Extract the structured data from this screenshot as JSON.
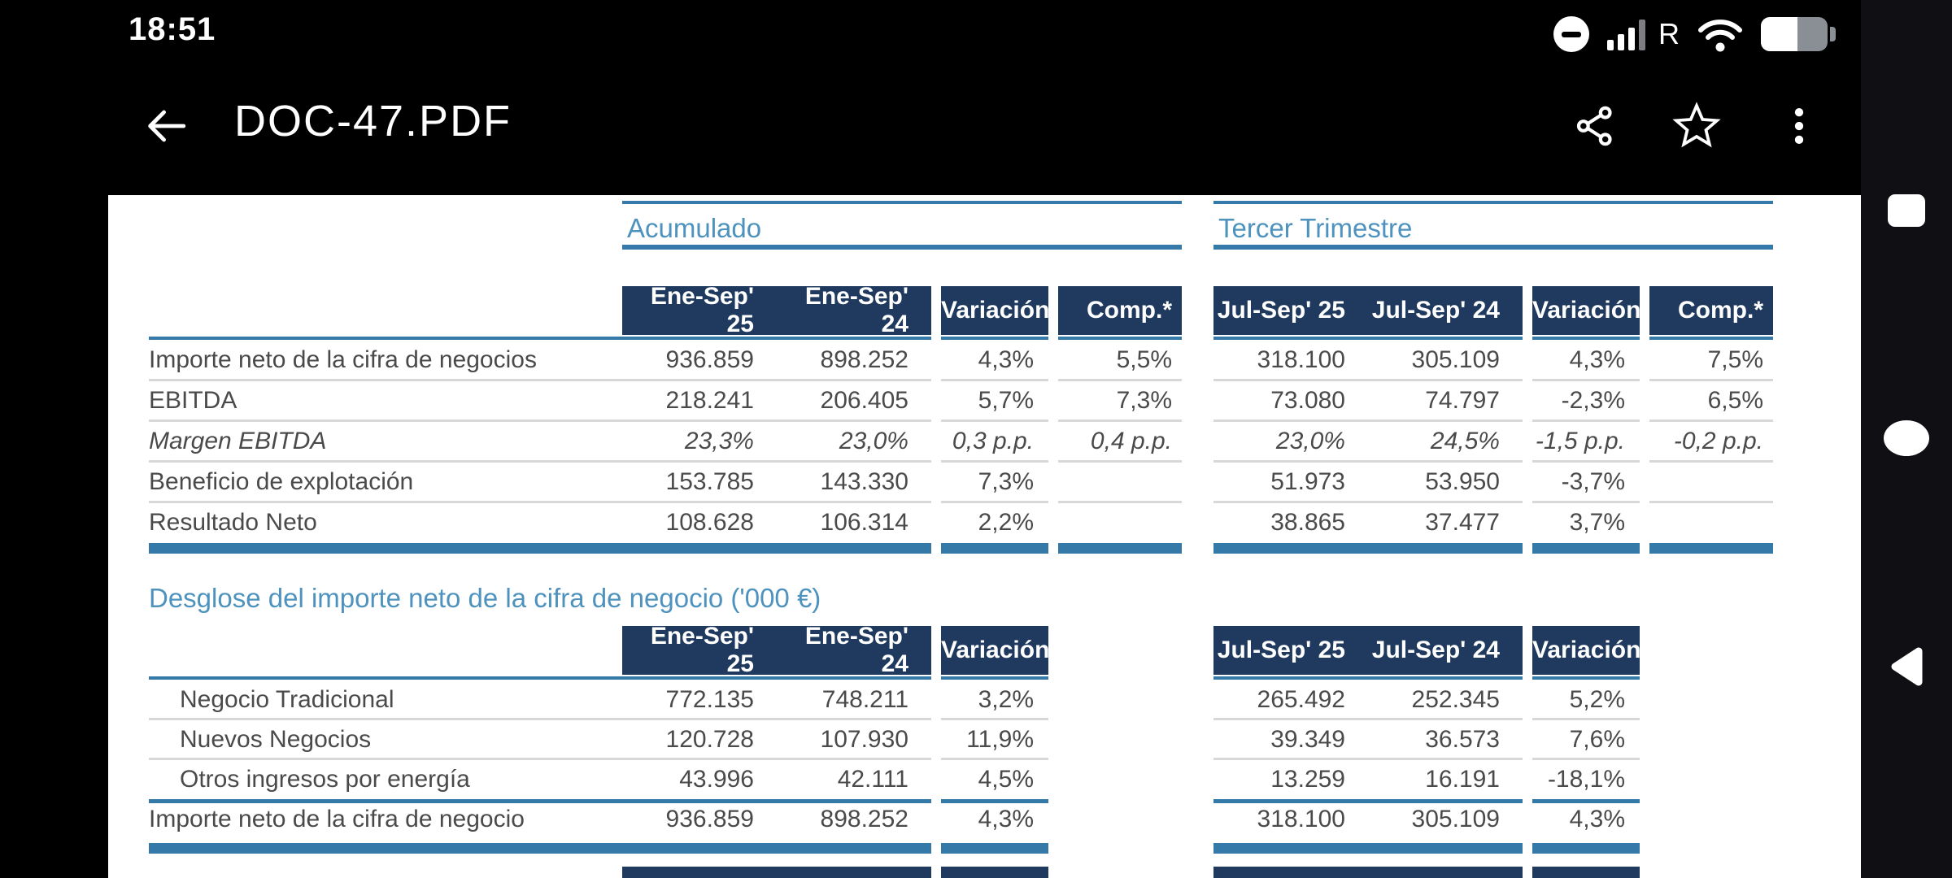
{
  "status_bar": {
    "time": "18:51",
    "roaming_indicator": "R"
  },
  "app_bar": {
    "title": "DOC-47.PDF"
  },
  "colors": {
    "accent_steel": "#3579A8",
    "header_navy": "#1F3A5E",
    "title_blue": "#4E92BE"
  },
  "document": {
    "section1": {
      "left_title": "Acumulado",
      "right_title": "Tercer Trimestre",
      "left_columns": [
        "Ene-Sep' 25",
        "Ene-Sep' 24",
        "Variación",
        "Comp.*"
      ],
      "right_columns": [
        "Jul-Sep' 25",
        "Jul-Sep' 24",
        "Variación",
        "Comp.*"
      ],
      "rows": [
        {
          "label": "Importe neto de la cifra de negocios",
          "italic": false,
          "left": [
            "936.859",
            "898.252",
            "4,3%",
            "5,5%"
          ],
          "right": [
            "318.100",
            "305.109",
            "4,3%",
            "7,5%"
          ]
        },
        {
          "label": "EBITDA",
          "italic": false,
          "left": [
            "218.241",
            "206.405",
            "5,7%",
            "7,3%"
          ],
          "right": [
            "73.080",
            "74.797",
            "-2,3%",
            "6,5%"
          ]
        },
        {
          "label": "Margen EBITDA",
          "italic": true,
          "left": [
            "23,3%",
            "23,0%",
            "0,3 p.p.",
            "0,4 p.p."
          ],
          "right": [
            "23,0%",
            "24,5%",
            "-1,5 p.p.",
            "-0,2 p.p."
          ]
        },
        {
          "label": "Beneficio de explotación",
          "italic": false,
          "left": [
            "153.785",
            "143.330",
            "7,3%",
            ""
          ],
          "right": [
            "51.973",
            "53.950",
            "-3,7%",
            ""
          ]
        },
        {
          "label": "Resultado Neto",
          "italic": false,
          "left": [
            "108.628",
            "106.314",
            "2,2%",
            ""
          ],
          "right": [
            "38.865",
            "37.477",
            "3,7%",
            ""
          ]
        }
      ]
    },
    "section2": {
      "title": "Desglose del importe neto de la cifra de negocio ('000 €)",
      "left_columns": [
        "Ene-Sep' 25",
        "Ene-Sep' 24",
        "Variación"
      ],
      "right_columns": [
        "Jul-Sep' 25",
        "Jul-Sep' 24",
        "Variación"
      ],
      "rows": [
        {
          "label": "Negocio Tradicional",
          "indent": true,
          "total": false,
          "left": [
            "772.135",
            "748.211",
            "3,2%"
          ],
          "right": [
            "265.492",
            "252.345",
            "5,2%"
          ]
        },
        {
          "label": "Nuevos Negocios",
          "indent": true,
          "total": false,
          "left": [
            "120.728",
            "107.930",
            "11,9%"
          ],
          "right": [
            "39.349",
            "36.573",
            "7,6%"
          ]
        },
        {
          "label": "Otros ingresos por energía",
          "indent": true,
          "total": false,
          "left": [
            "43.996",
            "42.111",
            "4,5%"
          ],
          "right": [
            "13.259",
            "16.191",
            "-18,1%"
          ]
        },
        {
          "label": "Importe neto de la cifra de negocio",
          "indent": false,
          "total": true,
          "left": [
            "936.859",
            "898.252",
            "4,3%"
          ],
          "right": [
            "318.100",
            "305.109",
            "4,3%"
          ]
        }
      ]
    }
  }
}
